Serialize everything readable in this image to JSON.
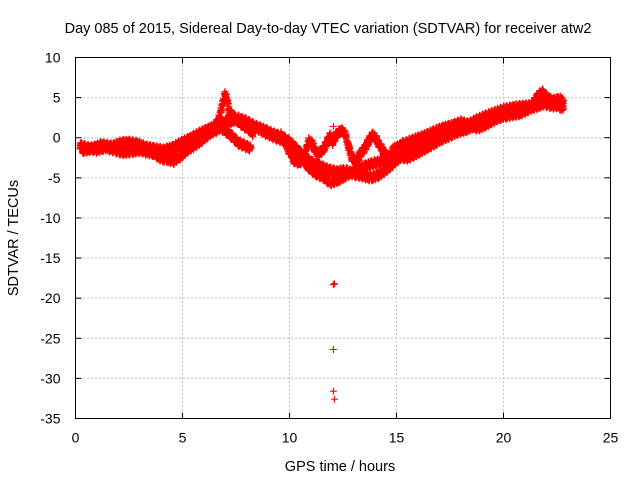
{
  "chart_data": {
    "type": "scatter",
    "title": "Day 085 of 2015, Sidereal Day-to-day VTEC variation (SDTVAR) for receiver atw2",
    "xlabel": "GPS time / hours",
    "ylabel": "SDTVAR / TECUs",
    "xlim": [
      0,
      25
    ],
    "ylim": [
      -35,
      10
    ],
    "xticks": [
      0,
      5,
      10,
      15,
      20,
      25
    ],
    "yticks": [
      10,
      5,
      0,
      -5,
      -10,
      -15,
      -20,
      -25,
      -30,
      -35
    ],
    "xtick_labels": [
      "0",
      "5",
      "10",
      "15",
      "20",
      "25"
    ],
    "ytick_labels": [
      "10",
      "5",
      "0",
      "-5",
      "-10",
      "-15",
      "-20",
      "-25",
      "-30",
      "-35"
    ],
    "grid": true,
    "marker": "+",
    "series": [
      {
        "name": "atw2",
        "color": "#ff0000",
        "tracks": [
          [
            [
              0.2,
              -1.0
            ],
            [
              0.6,
              -1.3
            ],
            [
              1.0,
              -1.5
            ],
            [
              1.4,
              -1.2
            ],
            [
              1.8,
              -1.5
            ],
            [
              2.2,
              -1.8
            ],
            [
              2.6,
              -1.7
            ],
            [
              3.0,
              -1.5
            ],
            [
              3.4,
              -1.8
            ],
            [
              3.8,
              -2.0
            ],
            [
              4.2,
              -2.6
            ],
            [
              4.6,
              -2.9
            ],
            [
              4.9,
              -2.2
            ],
            [
              5.3,
              -1.4
            ],
            [
              5.8,
              -0.5
            ],
            [
              6.3,
              0.6
            ],
            [
              6.8,
              1.3
            ],
            [
              7.2,
              2.0
            ],
            [
              7.6,
              2.4
            ],
            [
              8.0,
              2.0
            ],
            [
              8.4,
              1.4
            ],
            [
              8.8,
              1.0
            ],
            [
              9.2,
              0.5
            ],
            [
              9.6,
              0.1
            ],
            [
              10.0,
              -0.5
            ],
            [
              10.4,
              -1.6
            ],
            [
              10.8,
              -2.6
            ],
            [
              11.1,
              -3.2
            ],
            [
              11.4,
              -3.5
            ],
            [
              11.8,
              -4.0
            ],
            [
              12.2,
              -4.3
            ],
            [
              12.6,
              -4.1
            ],
            [
              13.0,
              -4.5
            ],
            [
              13.4,
              -4.7
            ],
            [
              13.8,
              -5.0
            ],
            [
              14.2,
              -4.6
            ],
            [
              14.6,
              -3.8
            ],
            [
              15.0,
              -2.8
            ],
            [
              15.4,
              -2.0
            ],
            [
              15.8,
              -1.4
            ],
            [
              16.2,
              -0.8
            ],
            [
              16.6,
              -0.1
            ],
            [
              17.0,
              0.5
            ],
            [
              17.4,
              0.7
            ],
            [
              17.8,
              1.0
            ],
            [
              18.2,
              1.4
            ],
            [
              18.6,
              2.0
            ],
            [
              19.0,
              2.5
            ],
            [
              19.4,
              2.9
            ],
            [
              19.8,
              3.3
            ],
            [
              20.2,
              3.6
            ],
            [
              20.6,
              3.8
            ],
            [
              21.0,
              3.9
            ],
            [
              21.4,
              4.0
            ],
            [
              21.8,
              4.3
            ],
            [
              22.2,
              4.5
            ],
            [
              22.6,
              4.8
            ],
            [
              22.8,
              4.6
            ]
          ],
          [
            [
              0.3,
              -1.6
            ],
            [
              0.8,
              -1.3
            ],
            [
              1.2,
              -0.9
            ],
            [
              1.7,
              -1.1
            ],
            [
              2.1,
              -0.7
            ],
            [
              2.5,
              -0.6
            ],
            [
              2.9,
              -0.8
            ],
            [
              3.3,
              -1.2
            ],
            [
              3.7,
              -1.4
            ],
            [
              4.1,
              -1.6
            ],
            [
              4.5,
              -1.3
            ],
            [
              4.9,
              -0.7
            ],
            [
              5.3,
              -0.2
            ],
            [
              5.7,
              0.4
            ],
            [
              6.1,
              0.9
            ],
            [
              6.5,
              1.4
            ],
            [
              6.9,
              1.8
            ],
            [
              7.3,
              2.6
            ],
            [
              7.7,
              2.1
            ],
            [
              8.1,
              1.6
            ],
            [
              8.5,
              1.2
            ],
            [
              8.9,
              0.6
            ],
            [
              9.3,
              0.1
            ],
            [
              9.7,
              -0.3
            ],
            [
              10.1,
              -1.0
            ],
            [
              10.5,
              -2.4
            ],
            [
              10.9,
              -3.7
            ],
            [
              11.2,
              -4.4
            ],
            [
              11.6,
              -4.9
            ],
            [
              11.9,
              -5.6
            ],
            [
              12.3,
              -5.2
            ],
            [
              12.7,
              -4.6
            ],
            [
              13.1,
              -4.0
            ],
            [
              13.5,
              -3.6
            ],
            [
              13.9,
              -3.2
            ],
            [
              14.3,
              -3.0
            ],
            [
              14.7,
              -2.6
            ],
            [
              15.1,
              -2.3
            ],
            [
              15.5,
              -2.5
            ],
            [
              15.9,
              -2.0
            ],
            [
              16.3,
              -1.4
            ],
            [
              16.7,
              -0.8
            ],
            [
              17.1,
              -0.2
            ],
            [
              17.5,
              0.3
            ],
            [
              17.9,
              0.8
            ],
            [
              18.3,
              1.1
            ],
            [
              18.7,
              1.6
            ],
            [
              19.1,
              2.1
            ],
            [
              19.5,
              2.6
            ],
            [
              19.9,
              2.9
            ],
            [
              20.3,
              3.2
            ],
            [
              20.7,
              3.4
            ],
            [
              21.1,
              3.6
            ],
            [
              21.5,
              3.9
            ],
            [
              21.9,
              4.3
            ],
            [
              22.3,
              4.0
            ],
            [
              22.7,
              4.1
            ]
          ],
          [
            [
              3.8,
              -2.3
            ],
            [
              4.2,
              -2.7
            ],
            [
              4.6,
              -2.2
            ],
            [
              5.0,
              -1.4
            ],
            [
              5.3,
              -0.7
            ],
            [
              5.6,
              -0.2
            ],
            [
              5.9,
              0.3
            ],
            [
              6.2,
              0.8
            ],
            [
              6.5,
              1.3
            ],
            [
              6.7,
              2.4
            ],
            [
              6.9,
              4.5
            ],
            [
              7.0,
              5.6
            ],
            [
              7.1,
              4.6
            ],
            [
              7.2,
              3.2
            ],
            [
              7.5,
              2.3
            ],
            [
              7.8,
              1.6
            ],
            [
              8.1,
              1.1
            ],
            [
              8.3,
              0.5
            ]
          ],
          [
            [
              4.9,
              -2.4
            ],
            [
              5.2,
              -1.2
            ],
            [
              5.5,
              -0.2
            ],
            [
              5.9,
              0.6
            ],
            [
              6.3,
              1.1
            ],
            [
              6.7,
              1.4
            ],
            [
              7.0,
              0.9
            ],
            [
              7.3,
              0.2
            ],
            [
              7.6,
              -0.6
            ],
            [
              7.9,
              -1.0
            ],
            [
              8.2,
              -1.3
            ]
          ],
          [
            [
              9.6,
              0.3
            ],
            [
              9.9,
              -1.2
            ],
            [
              10.2,
              -2.8
            ],
            [
              10.5,
              -3.1
            ],
            [
              10.8,
              -1.4
            ],
            [
              10.9,
              -0.3
            ],
            [
              11.1,
              -0.9
            ],
            [
              11.3,
              -2.1
            ],
            [
              11.6,
              -1.4
            ],
            [
              11.8,
              -0.3
            ],
            [
              11.9,
              0.2
            ],
            [
              12.0,
              -0.6
            ],
            [
              12.2,
              0.4
            ],
            [
              12.4,
              0.9
            ],
            [
              12.6,
              0.5
            ],
            [
              12.7,
              -0.8
            ],
            [
              12.9,
              -2.4
            ],
            [
              13.1,
              -3.0
            ],
            [
              13.3,
              -2.0
            ],
            [
              13.5,
              -1.4
            ],
            [
              13.7,
              -0.4
            ],
            [
              13.9,
              0.4
            ],
            [
              14.1,
              -0.4
            ],
            [
              14.4,
              -1.8
            ],
            [
              14.7,
              -2.6
            ],
            [
              14.9,
              -2.2
            ],
            [
              15.1,
              -1.4
            ],
            [
              15.3,
              -0.6
            ]
          ],
          [
            [
              14.8,
              -1.5
            ],
            [
              15.2,
              -1.0
            ],
            [
              15.6,
              -0.5
            ],
            [
              16.0,
              -0.1
            ],
            [
              16.4,
              0.3
            ],
            [
              16.8,
              0.8
            ],
            [
              17.2,
              1.2
            ],
            [
              17.6,
              1.5
            ],
            [
              18.0,
              1.9
            ],
            [
              18.4,
              1.6
            ],
            [
              18.8,
              1.2
            ],
            [
              19.2,
              1.7
            ],
            [
              19.6,
              2.3
            ],
            [
              20.0,
              2.7
            ],
            [
              20.4,
              2.9
            ],
            [
              20.8,
              3.1
            ],
            [
              21.2,
              3.6
            ],
            [
              21.6,
              5.2
            ],
            [
              21.8,
              5.7
            ],
            [
              22.0,
              5.1
            ],
            [
              22.4,
              4.3
            ],
            [
              22.8,
              3.6
            ]
          ]
        ],
        "outliers": [
          [
            12.05,
            1.4
          ],
          [
            12.05,
            -18.3
          ],
          [
            12.1,
            -18.2
          ],
          [
            12.05,
            -26.4
          ],
          [
            12.05,
            -31.6
          ],
          [
            12.1,
            -32.6
          ]
        ]
      }
    ]
  }
}
